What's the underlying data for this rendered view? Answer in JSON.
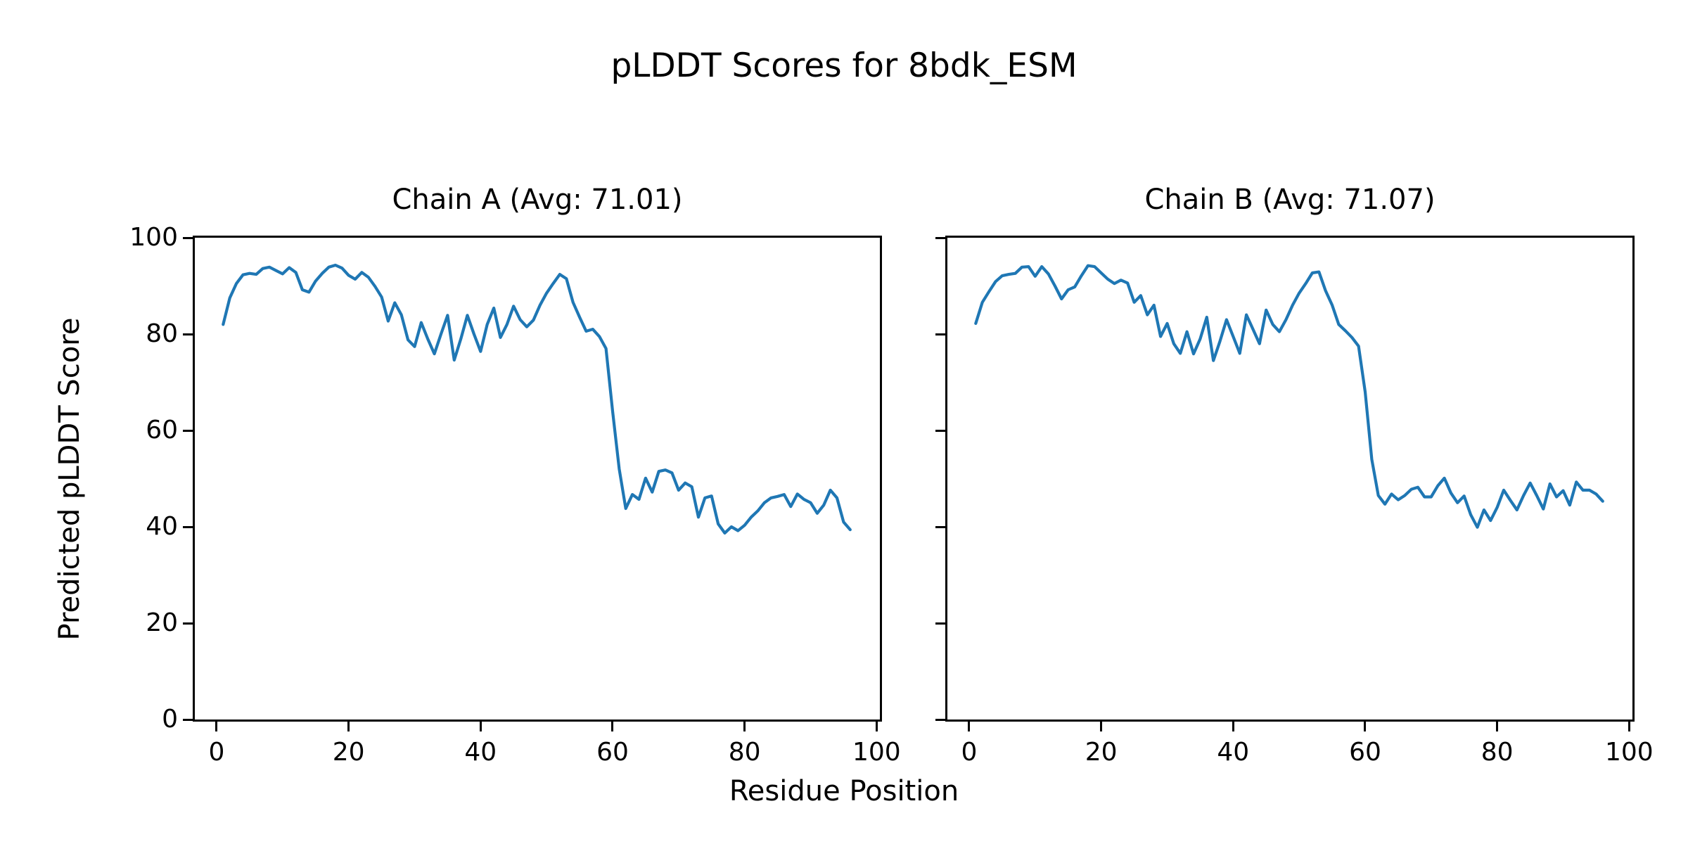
{
  "figure": {
    "title": "pLDDT Scores for 8bdk_ESM",
    "xlabel": "Residue Position",
    "ylabel": "Predicted pLDDT Score"
  },
  "chart_data": [
    {
      "type": "line",
      "title": "Chain A (Avg: 71.01)",
      "line_color": "#1f77b4",
      "x_start": 1,
      "xlim": [
        -3.3,
        100.5
      ],
      "ylim": [
        0,
        100
      ],
      "xticks": [
        0,
        20,
        40,
        60,
        80,
        100
      ],
      "yticks": [
        0,
        20,
        40,
        60,
        80,
        100
      ],
      "show_ytick_labels": true,
      "grid": false,
      "values": [
        82.0,
        87.5,
        90.5,
        92.3,
        92.6,
        92.4,
        93.6,
        93.9,
        93.2,
        92.5,
        93.8,
        92.8,
        89.2,
        88.7,
        91.0,
        92.6,
        93.9,
        94.3,
        93.7,
        92.2,
        91.4,
        92.8,
        91.8,
        89.9,
        87.7,
        82.7,
        86.5,
        84.0,
        78.8,
        77.4,
        82.4,
        79.0,
        75.9,
        80.0,
        83.9,
        74.6,
        79.0,
        83.9,
        80.0,
        76.4,
        82.0,
        85.4,
        79.3,
        82.0,
        85.8,
        83.0,
        81.5,
        82.9,
        86.0,
        88.5,
        90.5,
        92.4,
        91.5,
        86.6,
        83.5,
        80.6,
        81.0,
        79.5,
        77.0,
        64.0,
        52.0,
        43.8,
        46.7,
        45.7,
        50.1,
        47.2,
        51.5,
        51.8,
        51.2,
        47.6,
        49.1,
        48.3,
        42.0,
        46.0,
        46.4,
        40.6,
        38.7,
        40.0,
        39.2,
        40.3,
        42.0,
        43.3,
        45.0,
        46.0,
        46.3,
        46.7,
        44.2,
        46.8,
        45.7,
        45.0,
        42.8,
        44.5,
        47.6,
        46.0,
        41.0,
        39.4
      ]
    },
    {
      "type": "line",
      "title": "Chain B (Avg: 71.07)",
      "line_color": "#1f77b4",
      "x_start": 1,
      "xlim": [
        -3.3,
        100.5
      ],
      "ylim": [
        0,
        100
      ],
      "xticks": [
        0,
        20,
        40,
        60,
        80,
        100
      ],
      "yticks": [
        0,
        20,
        40,
        60,
        80,
        100
      ],
      "show_ytick_labels": false,
      "grid": false,
      "values": [
        82.2,
        86.6,
        88.8,
        90.9,
        92.1,
        92.4,
        92.6,
        93.9,
        94.0,
        92.0,
        94.0,
        92.5,
        90.0,
        87.3,
        89.2,
        89.8,
        92.1,
        94.2,
        94.0,
        92.7,
        91.4,
        90.5,
        91.2,
        90.6,
        86.6,
        88.0,
        84.0,
        86.0,
        79.5,
        82.2,
        78.0,
        76.0,
        80.5,
        75.9,
        79.0,
        83.5,
        74.5,
        78.5,
        83.0,
        79.5,
        76.0,
        84.0,
        81.0,
        78.0,
        85.0,
        82.0,
        80.5,
        83.0,
        86.0,
        88.5,
        90.5,
        92.7,
        92.9,
        89.0,
        86.0,
        82.0,
        80.7,
        79.3,
        77.5,
        68.0,
        54.0,
        46.5,
        44.7,
        46.8,
        45.6,
        46.5,
        47.8,
        48.2,
        46.2,
        46.2,
        48.5,
        50.1,
        47.0,
        45.0,
        46.4,
        42.5,
        39.9,
        43.5,
        41.3,
        44.0,
        47.6,
        45.5,
        43.5,
        46.5,
        49.1,
        46.5,
        43.7,
        48.9,
        46.2,
        47.5,
        44.5,
        49.3,
        47.6,
        47.6,
        46.8,
        45.3
      ]
    }
  ]
}
